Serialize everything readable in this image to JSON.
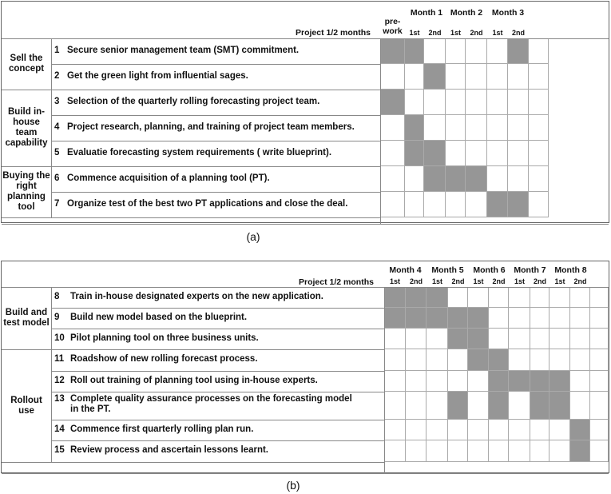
{
  "panel_a": {
    "caption": "(a)",
    "period_label": "Project 1/2 months",
    "prework_label": "pre-\nwork",
    "months": [
      "Month 1",
      "Month 2",
      "Month 3"
    ],
    "halves": [
      "1st",
      "2nd",
      "1st",
      "2nd",
      "1st",
      "2nd"
    ],
    "groups": [
      {
        "label": "Sell the concept",
        "rows": 2
      },
      {
        "label": "Build in-house team capability",
        "rows": 3
      },
      {
        "label": "Buying the right planning tool",
        "rows": 2
      }
    ],
    "tasks": [
      {
        "num": "1",
        "text": "Secure senior management team (SMT) commitment.",
        "cells": [
          1,
          1,
          0,
          0,
          0,
          0,
          1,
          0
        ]
      },
      {
        "num": "2",
        "text": "Get the green light from influential sages.",
        "cells": [
          0,
          0,
          1,
          0,
          0,
          0,
          0,
          0
        ]
      },
      {
        "num": "3",
        "text": "Selection of the quarterly rolling forecasting project team.",
        "cells": [
          1,
          0,
          0,
          0,
          0,
          0,
          0,
          0
        ]
      },
      {
        "num": "4",
        "text": "Project research, planning, and training of project team members.",
        "cells": [
          0,
          1,
          0,
          0,
          0,
          0,
          0,
          0
        ]
      },
      {
        "num": "5",
        "text": "Evaluatie forecasting system requirements ( write blueprint).",
        "cells": [
          0,
          1,
          1,
          0,
          0,
          0,
          0,
          0
        ]
      },
      {
        "num": "6",
        "text": "Commence acquisition of a planning tool (PT).",
        "cells": [
          0,
          0,
          1,
          1,
          1,
          0,
          0,
          0
        ]
      },
      {
        "num": "7",
        "text": "Organize test of the best two PT applications and close the deal.",
        "cells": [
          0,
          0,
          0,
          0,
          0,
          1,
          1,
          0
        ]
      }
    ]
  },
  "panel_b": {
    "caption": "(b)",
    "period_label": "Project 1/2 months",
    "months": [
      "Month 4",
      "Month 5",
      "Month 6",
      "Month 7",
      "Month 8"
    ],
    "halves": [
      "1st",
      "2nd",
      "1st",
      "2nd",
      "1st",
      "2nd",
      "1st",
      "2nd",
      "1st",
      "2nd"
    ],
    "groups": [
      {
        "label": "Build and test model",
        "rows": 3
      },
      {
        "label": "Rollout use",
        "rows": 5
      }
    ],
    "tasks": [
      {
        "num": "8",
        "text": "Train in-house designated experts on the new application.",
        "cells": [
          1,
          1,
          1,
          0,
          0,
          0,
          0,
          0,
          0,
          0,
          0
        ]
      },
      {
        "num": "9",
        "text": "Build new model based on the blueprint.",
        "cells": [
          1,
          1,
          1,
          1,
          1,
          0,
          0,
          0,
          0,
          0,
          0
        ]
      },
      {
        "num": "10",
        "text": "Pilot planning tool on three business units.",
        "cells": [
          0,
          0,
          0,
          1,
          1,
          0,
          0,
          0,
          0,
          0,
          0
        ]
      },
      {
        "num": "11",
        "text": "Roadshow of new rolling forecast process.",
        "cells": [
          0,
          0,
          0,
          0,
          1,
          1,
          0,
          0,
          0,
          0,
          0
        ]
      },
      {
        "num": "12",
        "text": "Roll out training of planning tool using in-house experts.",
        "cells": [
          0,
          0,
          0,
          0,
          0,
          1,
          1,
          1,
          1,
          0,
          0
        ]
      },
      {
        "num": "13",
        "text": "Complete quality assurance processes on the forecasting model\nin the PT.",
        "cells": [
          0,
          0,
          0,
          1,
          0,
          1,
          0,
          1,
          1,
          0,
          0
        ]
      },
      {
        "num": "14",
        "text": "Commence first quarterly rolling plan run.",
        "cells": [
          0,
          0,
          0,
          0,
          0,
          0,
          0,
          0,
          0,
          1,
          0
        ]
      },
      {
        "num": "15",
        "text": "Review process and ascertain lessons learnt.",
        "cells": [
          0,
          0,
          0,
          0,
          0,
          0,
          0,
          0,
          0,
          1,
          0
        ]
      }
    ]
  }
}
